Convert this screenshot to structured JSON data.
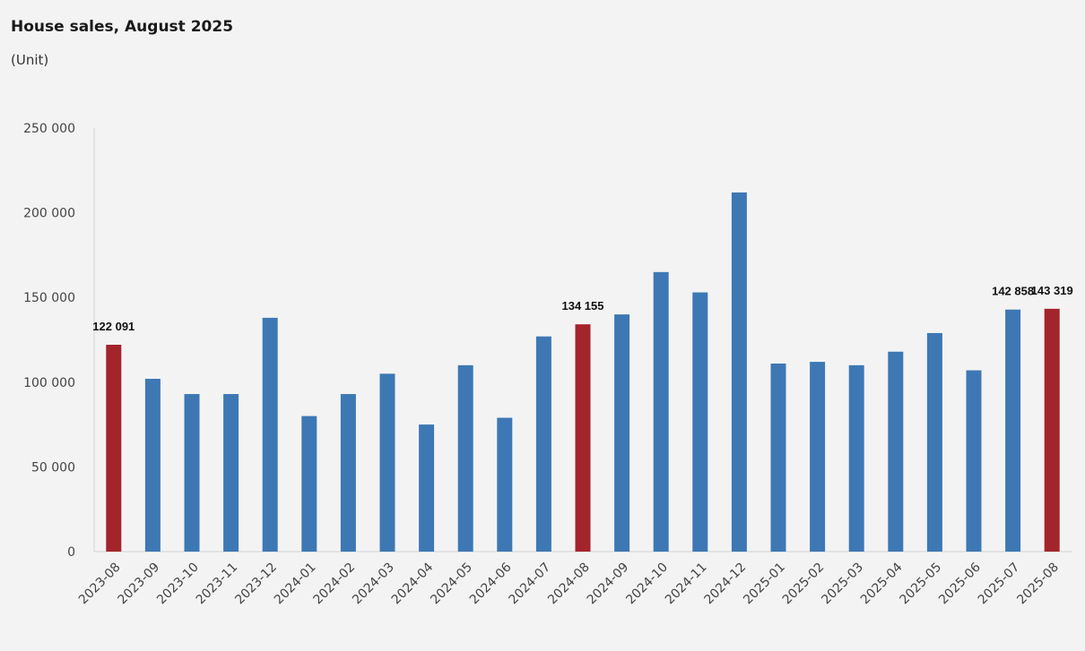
{
  "chart_data": {
    "type": "bar",
    "title": "House sales, August 2025",
    "unit": "(Unit)",
    "xlabel": "",
    "ylabel": "",
    "ylim": [
      0,
      250000
    ],
    "yticks": [
      0,
      50000,
      100000,
      150000,
      200000,
      250000
    ],
    "ytick_labels": [
      "0",
      "50 000",
      "100 000",
      "150 000",
      "200 000",
      "250 000"
    ],
    "grid": false,
    "legend": "none",
    "categories": [
      "2023-08",
      "2023-09",
      "2023-10",
      "2023-11",
      "2023-12",
      "2024-01",
      "2024-02",
      "2024-03",
      "2024-04",
      "2024-05",
      "2024-06",
      "2024-07",
      "2024-08",
      "2024-09",
      "2024-10",
      "2024-11",
      "2024-12",
      "2025-01",
      "2025-02",
      "2025-03",
      "2025-04",
      "2025-05",
      "2025-06",
      "2025-07",
      "2025-08"
    ],
    "values": [
      122091,
      102000,
      93000,
      93000,
      138000,
      80000,
      93000,
      105000,
      75000,
      110000,
      79000,
      127000,
      134155,
      140000,
      165000,
      153000,
      212000,
      111000,
      112000,
      110000,
      118000,
      129000,
      107000,
      142858,
      143319
    ],
    "highlighted": [
      "2023-08",
      "2024-08",
      "2025-08"
    ],
    "data_labels": [
      {
        "category": "2023-08",
        "text": "122 091"
      },
      {
        "category": "2024-08",
        "text": "134 155"
      },
      {
        "category": "2025-07",
        "text": "142 858"
      },
      {
        "category": "2025-08",
        "text": "143 319"
      }
    ],
    "colors": {
      "default": "#3d78b4",
      "highlight": "#a3242a",
      "axis": "#d0d0d0"
    }
  }
}
